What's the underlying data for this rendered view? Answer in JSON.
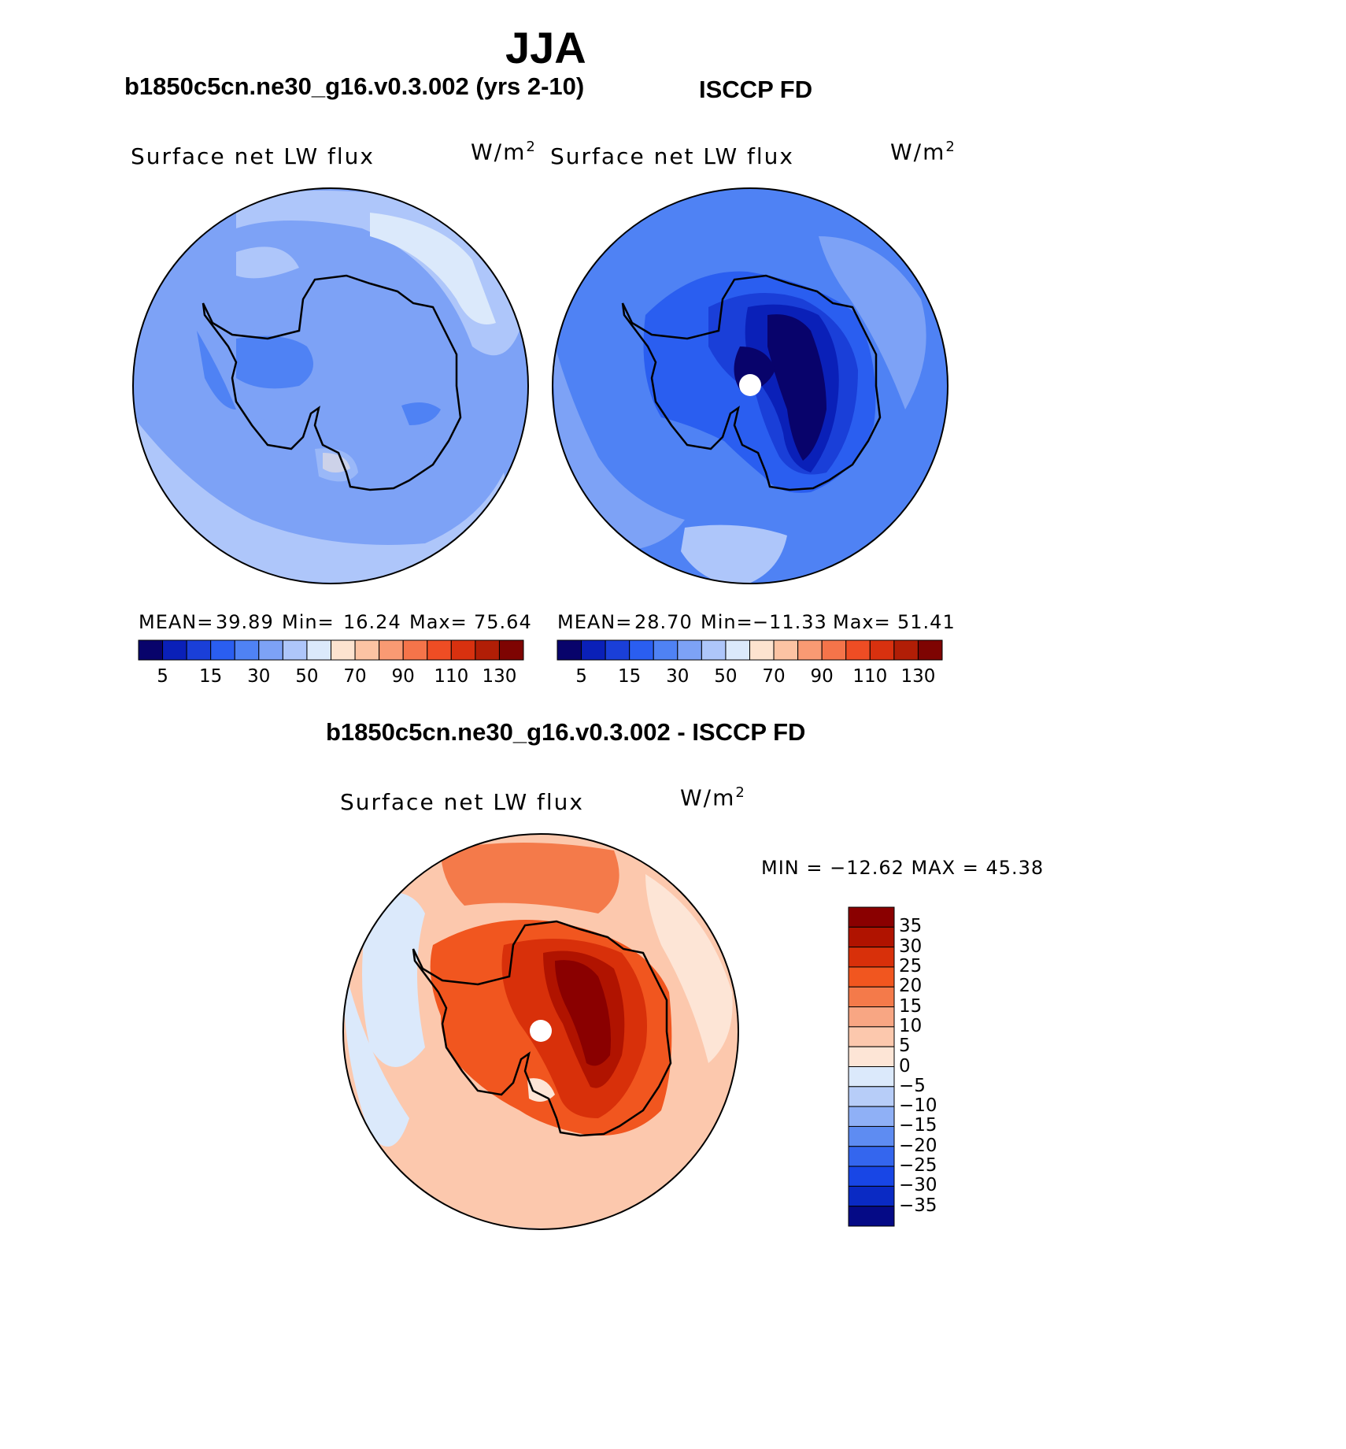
{
  "figure": {
    "season_title": "JJA",
    "left_title": "b1850c5cn.ne30_g16.v0.3.002 (yrs 2-10)",
    "right_title": "ISCCP FD",
    "diff_title": "b1850c5cn.ne30_g16.v0.3.002 - ISCCP FD"
  },
  "panels": {
    "left": {
      "variable": "Surface net LW flux",
      "units_base": "W/m",
      "units_exp": "2",
      "mean_label": "MEAN=",
      "mean_value": "39.89",
      "min_label": "Min=",
      "min_value": "16.24",
      "max_label": "Max=",
      "max_value": "75.64"
    },
    "right": {
      "variable": "Surface net LW flux",
      "units_base": "W/m",
      "units_exp": "2",
      "mean_label": "MEAN=",
      "mean_value": "28.70",
      "min_label": "Min=",
      "min_value": "−11.33",
      "max_label": "Max=",
      "max_value": "51.41"
    },
    "diff": {
      "variable": "Surface net LW flux",
      "units_base": "W/m",
      "units_exp": "2",
      "minmax_text": "MIN = −12.62 MAX =  45.38"
    }
  },
  "colorbars": {
    "top_ticks": [
      "5",
      "15",
      "30",
      "50",
      "70",
      "90",
      "110",
      "130"
    ],
    "top_colors": [
      "#08036b",
      "#0a20b8",
      "#1a3fd8",
      "#2a5ef0",
      "#4f82f4",
      "#7da2f6",
      "#aec6fa",
      "#dbe9fb",
      "#fde3cf",
      "#fcc3a3",
      "#f99a73",
      "#f5744a",
      "#ee4d24",
      "#d8310f",
      "#b11e06",
      "#7e0402"
    ],
    "diff_ticks": [
      "35",
      "30",
      "25",
      "20",
      "15",
      "10",
      "5",
      "0",
      "−5",
      "−10",
      "−15",
      "−20",
      "−25",
      "−30",
      "−35"
    ],
    "diff_colors": [
      "#8a0000",
      "#b01300",
      "#d8300a",
      "#f1561f",
      "#f47a4a",
      "#f8a683",
      "#fcc8ad",
      "#fde5d6",
      "#dbe9fb",
      "#b7cdf8",
      "#8fb0f6",
      "#5e8cf2",
      "#3466ee",
      "#1846e6",
      "#0a2ac4",
      "#050a86"
    ]
  }
}
